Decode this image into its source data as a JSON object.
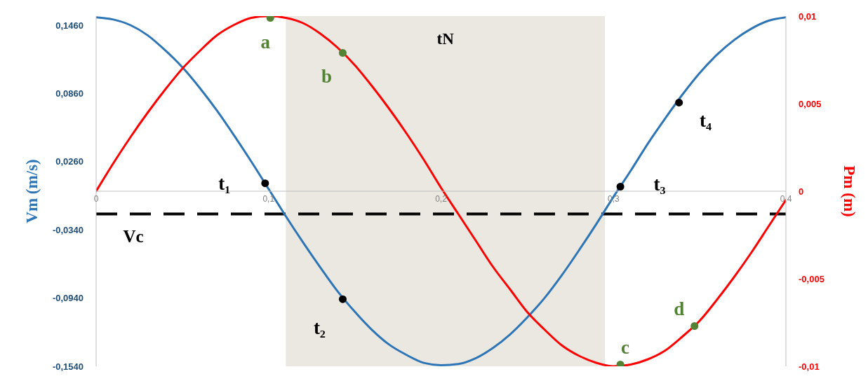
{
  "chart_data": {
    "type": "line",
    "xlim": [
      0,
      0.4
    ],
    "xticks": [
      0,
      {
        "value": 0.1,
        "label": "0,1"
      },
      {
        "value": 0.2,
        "label": "0,2"
      },
      {
        "value": 0.3,
        "label": "0,3"
      },
      {
        "value": 0.4,
        "label": "0,4"
      }
    ],
    "ylim": [
      -0.154,
      0.154
    ],
    "yticks": [
      {
        "value": -0.154,
        "label": "-0,1540"
      },
      {
        "value": -0.094,
        "label": "-0,0940"
      },
      {
        "value": -0.034,
        "label": "-0,0340"
      },
      {
        "value": 0.026,
        "label": "0,0260"
      },
      {
        "value": 0.086,
        "label": "0,0860"
      },
      {
        "value": 0.146,
        "label": "0,1460"
      }
    ],
    "y2lim": [
      -0.01,
      0.01
    ],
    "y2ticks": [
      {
        "value": -0.01,
        "label": "-0,01"
      },
      {
        "value": -0.005,
        "label": "-0,005"
      },
      0,
      {
        "value": 0.005,
        "label": "0,005"
      },
      {
        "value": 0.01,
        "label": "0,01"
      }
    ],
    "ylabel": "Vm (m/s)",
    "y2label": "Pm (m)",
    "x": [
      0,
      0.01,
      0.02,
      0.03,
      0.04,
      0.05,
      0.06,
      0.07,
      0.08,
      0.09,
      0.1,
      0.11,
      0.12,
      0.13,
      0.14,
      0.15,
      0.16,
      0.17,
      0.18,
      0.19,
      0.2,
      0.21,
      0.22,
      0.23,
      0.24,
      0.25,
      0.26,
      0.27,
      0.28,
      0.29,
      0.3,
      0.31,
      0.32,
      0.33,
      0.34,
      0.35,
      0.36,
      0.37,
      0.38,
      0.39,
      0.4
    ],
    "series": [
      {
        "color": "#2e75b6",
        "marker": "none",
        "values": [
          0.153,
          0.151,
          0.146,
          0.137,
          0.124,
          0.109,
          0.091,
          0.071,
          0.049,
          0.026,
          0.002,
          -0.022,
          -0.045,
          -0.067,
          -0.088,
          -0.106,
          -0.122,
          -0.135,
          -0.144,
          -0.151,
          -0.153,
          -0.152,
          -0.147,
          -0.138,
          -0.126,
          -0.111,
          -0.094,
          -0.074,
          -0.052,
          -0.029,
          -0.005,
          0.018,
          0.042,
          0.064,
          0.085,
          0.104,
          0.12,
          0.133,
          0.143,
          0.15,
          0.153
        ]
      },
      {
        "axis": "y2",
        "color": "#ff0000",
        "marker": "none",
        "values": [
          0,
          0.0016,
          0.0031,
          0.0045,
          0.0058,
          0.007,
          0.008,
          0.0089,
          0.0095,
          0.0099,
          0.01,
          0.0099,
          0.0096,
          0.009,
          0.0082,
          0.0072,
          0.006,
          0.0047,
          0.0033,
          0.0018,
          0.0002,
          -0.0013,
          -0.0028,
          -0.0043,
          -0.0056,
          -0.0069,
          -0.0079,
          -0.0088,
          -0.0094,
          -0.0098,
          -0.01,
          -0.0099,
          -0.0096,
          -0.0091,
          -0.0083,
          -0.0074,
          -0.0062,
          -0.0049,
          -0.0035,
          -0.002,
          -0.0005
        ]
      },
      {
        "type": "scatter",
        "color": "#000000",
        "marker": "circle",
        "x": [
          0.098,
          0.143,
          0.304,
          0.338
        ],
        "values": [
          0.007,
          -0.095,
          0.004,
          0.078
        ],
        "value_labels": [
          "t₁",
          "t₂",
          "t₃",
          "t₄"
        ]
      },
      {
        "type": "scatter",
        "axis": "y2",
        "color": "#548235",
        "marker": "circle",
        "x": [
          0.101,
          0.143,
          0.304,
          0.347
        ],
        "values": [
          0.0099,
          0.0079,
          -0.0099,
          -0.0077
        ],
        "value_labels": [
          "a",
          "b",
          "c",
          "d"
        ]
      }
    ],
    "ref_lines": [
      {
        "axis": "y",
        "value": -0.02,
        "label": "Vc",
        "color": "#000000",
        "line_style": "dashed"
      }
    ],
    "bands": [
      {
        "axis": "x",
        "from": 0.11,
        "to": 0.295,
        "label": "tN",
        "color": "#ebe8e2"
      }
    ]
  }
}
